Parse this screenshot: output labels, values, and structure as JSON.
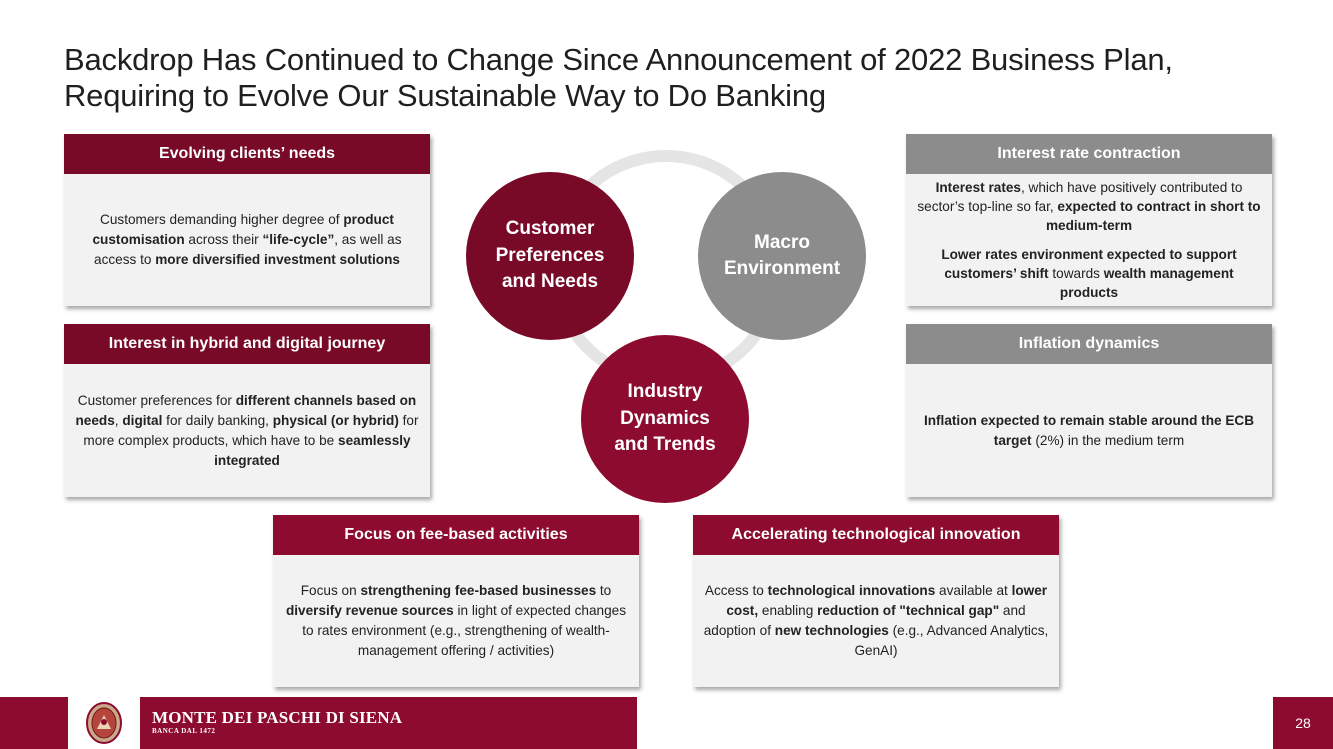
{
  "title": {
    "line1": "Backdrop Has Continued to Change Since Announcement of 2022 Business Plan,",
    "line2": "Requiring to Evolve Our Sustainable Way to Do Banking"
  },
  "boxes": {
    "clients_needs": {
      "header": "Evolving clients’ needs",
      "body": [
        {
          "t": "Customers demanding higher degree of "
        },
        {
          "b": "product customisation"
        },
        {
          "t": " across their "
        },
        {
          "b": "“life-cycle”"
        },
        {
          "t": ", as well as access to "
        },
        {
          "b": "more diversified investment solutions"
        }
      ]
    },
    "hybrid_digital": {
      "header": "Interest in hybrid and digital journey",
      "body": [
        {
          "t": "Customer preferences for "
        },
        {
          "b": "different channels based on needs"
        },
        {
          "t": ", "
        },
        {
          "b": "digital"
        },
        {
          "t": " for daily banking, "
        },
        {
          "b": "physical (or hybrid)"
        },
        {
          "t": " for more complex products, which have to be "
        },
        {
          "b": "seamlessly integrated"
        }
      ]
    },
    "interest_rate": {
      "header": "Interest rate contraction",
      "para1": [
        {
          "b": "Interest rates"
        },
        {
          "t": ", which have positively contributed to sector’s top-line so far, "
        },
        {
          "b": "expected to contract in short to medium-term"
        }
      ],
      "para2": [
        {
          "b": "Lower rates environment expected to support customers’ shift"
        },
        {
          "t": " towards "
        },
        {
          "b": "wealth management products"
        }
      ]
    },
    "inflation": {
      "header": "Inflation dynamics",
      "body": [
        {
          "b": "Inflation expected to remain stable around the ECB target"
        },
        {
          "t": " (2%) in the medium term"
        }
      ]
    },
    "fee_based": {
      "header": "Focus on fee-based activities",
      "body": [
        {
          "t": "Focus on "
        },
        {
          "b": "strengthening fee-based businesses"
        },
        {
          "t": " to "
        },
        {
          "b": "diversify revenue sources"
        },
        {
          "t": " in light of expected changes to rates environment (e.g., strengthening of wealth-management offering / activities)"
        }
      ]
    },
    "tech_innovation": {
      "header": "Accelerating technological innovation",
      "body": [
        {
          "t": "Access to "
        },
        {
          "b": "technological innovations"
        },
        {
          "t": " available at "
        },
        {
          "b": "lower cost,"
        },
        {
          "t": " enabling "
        },
        {
          "b": "reduction of \"technical gap\""
        },
        {
          "t": " and adoption of "
        },
        {
          "b": "new technologies"
        },
        {
          "t": " (e.g., Advanced Analytics, GenAI)"
        }
      ]
    }
  },
  "circles": {
    "customer": "Customer Preferences and Needs",
    "macro": "Macro Environment",
    "industry": "Industry Dynamics and Trends"
  },
  "footer": {
    "brand_name": "MONTE DEI PASCHI DI SIENA",
    "brand_sub": "BANCA DAL 1472",
    "page_number": "28"
  },
  "colors": {
    "dark_red": "#780a28",
    "red": "#8c0b2e",
    "grey": "#8c8c8c"
  }
}
